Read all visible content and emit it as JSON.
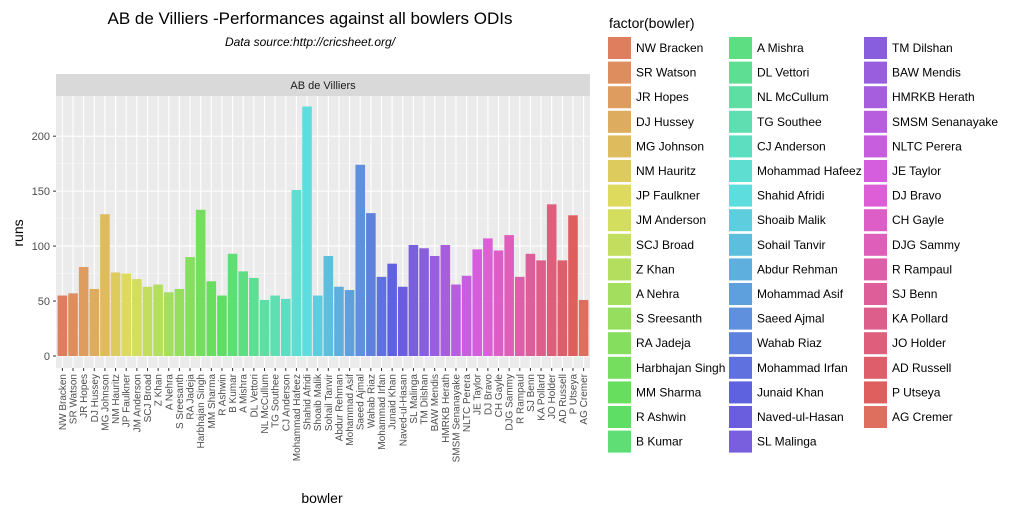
{
  "chart_data": {
    "type": "bar",
    "title": "AB de Villiers -Performances against all bowlers ODIs",
    "subtitle": "Data source:http://cricsheet.org/",
    "facet_label": "AB de Villiers",
    "xlabel": "bowler",
    "ylabel": "runs",
    "ylim": [
      0,
      240
    ],
    "yticks": [
      0,
      50,
      100,
      150,
      200
    ],
    "grid": true,
    "legend_title": "factor(bowler)",
    "legend_position": "right",
    "categories": [
      "NW Bracken",
      "SR Watson",
      "JR Hopes",
      "DJ Hussey",
      "MG Johnson",
      "NM Hauritz",
      "JP Faulkner",
      "JM Anderson",
      "SCJ Broad",
      "Z Khan",
      "A Nehra",
      "S Sreesanth",
      "RA Jadeja",
      "Harbhajan Singh",
      "MM Sharma",
      "R Ashwin",
      "B Kumar",
      "A Mishra",
      "DL Vettori",
      "NL McCullum",
      "TG Southee",
      "CJ Anderson",
      "Mohammad Hafeez",
      "Shahid Afridi",
      "Shoaib Malik",
      "Sohail Tanvir",
      "Abdur Rehman",
      "Mohammad Asif",
      "Saeed Ajmal",
      "Wahab Riaz",
      "Mohammad Irfan",
      "Junaid Khan",
      "Naved-ul-Hasan",
      "SL Malinga",
      "TM Dilshan",
      "BAW Mendis",
      "HMRKB Herath",
      "SMSM Senanayake",
      "NLTC Perera",
      "JE Taylor",
      "DJ Bravo",
      "CH Gayle",
      "DJG Sammy",
      "R Rampaul",
      "SJ Benn",
      "KA Pollard",
      "JO Holder",
      "AD Russell",
      "P Utseya",
      "AG Cremer"
    ],
    "values": [
      55,
      57,
      81,
      61,
      129,
      76,
      75,
      70,
      63,
      65,
      58,
      61,
      90,
      133,
      68,
      55,
      93,
      77,
      71,
      51,
      55,
      52,
      151,
      227,
      55,
      91,
      63,
      60,
      174,
      130,
      72,
      84,
      63,
      101,
      98,
      91,
      101,
      65,
      73,
      97,
      107,
      96,
      110,
      72,
      93,
      87,
      138,
      87,
      128,
      51
    ]
  }
}
